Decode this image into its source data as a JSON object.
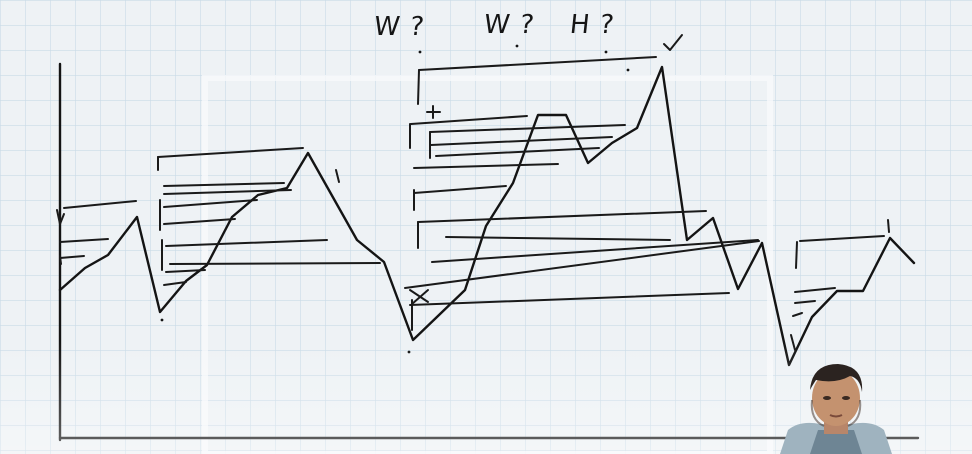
{
  "annotations": {
    "note_1": "W ?",
    "note_2": "W ?",
    "note_3": "H ?"
  },
  "colors": {
    "board_background": "#eef2f5",
    "grid_line": "#c9dbe7",
    "ink": "#141414"
  },
  "icons": {
    "presenter": "presenter-webcam-thumbnail"
  }
}
